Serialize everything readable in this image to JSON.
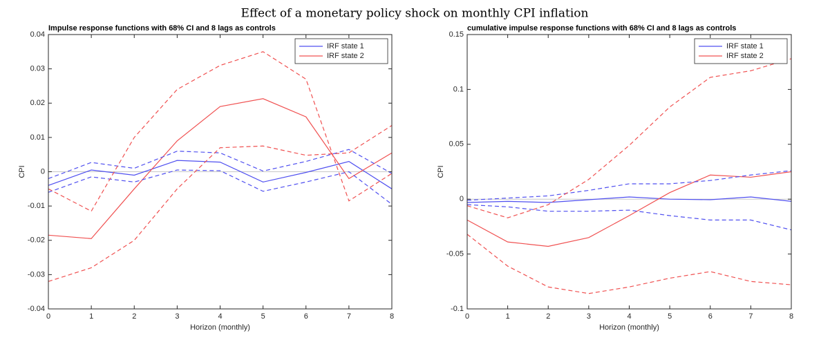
{
  "title": "Effect of a monetary policy shock on monthly CPI inflation",
  "chart_data": [
    {
      "type": "line",
      "title": "Impulse response functions with 68% CI and 8 lags as controls",
      "x_label": "Horizon (monthly)",
      "y_label": "CPI",
      "x": [
        0,
        1,
        2,
        3,
        4,
        5,
        6,
        7,
        8
      ],
      "xlim": [
        0,
        8
      ],
      "xticks": [
        0,
        1,
        2,
        3,
        4,
        5,
        6,
        7,
        8
      ],
      "ylim": [
        -0.04,
        0.04
      ],
      "yticks": [
        -0.04,
        -0.03,
        -0.02,
        -0.01,
        0,
        0.01,
        0.02,
        0.03,
        0.04
      ],
      "legend": "upper right",
      "series": [
        {
          "name": "IRF state 1",
          "color": "#4f4ff0",
          "values": [
            -0.004,
            0.0005,
            -0.001,
            0.0033,
            0.0028,
            -0.003,
            -0.0002,
            0.003,
            -0.005
          ]
        },
        {
          "name": "IRF state 2",
          "color": "#f05050",
          "values": [
            -0.0185,
            -0.0195,
            -0.005,
            0.009,
            0.019,
            0.0213,
            0.016,
            -0.002,
            0.0055
          ]
        },
        {
          "color": "#4f4ff0",
          "dashed": true,
          "values": [
            -0.002,
            0.0027,
            0.001,
            0.006,
            0.0055,
            0.0002,
            0.003,
            0.0065,
            -0.0005
          ]
        },
        {
          "color": "#4f4ff0",
          "dashed": true,
          "values": [
            -0.006,
            -0.0015,
            -0.003,
            0.0005,
            0.0003,
            -0.0057,
            -0.003,
            0,
            -0.0095
          ]
        },
        {
          "color": "#f05050",
          "dashed": true,
          "values": [
            -0.005,
            -0.0115,
            0.01,
            0.024,
            0.031,
            0.035,
            0.027,
            -0.0085,
            -0.0005
          ]
        },
        {
          "color": "#f05050",
          "dashed": true,
          "values": [
            -0.032,
            -0.028,
            -0.02,
            -0.005,
            0.007,
            0.0075,
            0.0048,
            0.0055,
            0.0135
          ]
        }
      ]
    },
    {
      "type": "line",
      "title": "cumulative impulse response functions with 68% CI and 8 lags as controls",
      "x_label": "Horizon (monthly)",
      "y_label": "CPI",
      "x": [
        0,
        1,
        2,
        3,
        4,
        5,
        6,
        7,
        8
      ],
      "xlim": [
        0,
        8
      ],
      "xticks": [
        0,
        1,
        2,
        3,
        4,
        5,
        6,
        7,
        8
      ],
      "ylim": [
        -0.1,
        0.15
      ],
      "yticks": [
        -0.1,
        -0.05,
        0,
        0.05,
        0.1,
        0.15
      ],
      "legend": "upper right",
      "series": [
        {
          "name": "IRF state 1",
          "color": "#4f4ff0",
          "values": [
            -0.003,
            -0.002,
            -0.003,
            -0.0005,
            0.002,
            0,
            -0.0005,
            0.002,
            -0.002
          ]
        },
        {
          "name": "IRF state 2",
          "color": "#f05050",
          "values": [
            -0.019,
            -0.039,
            -0.043,
            -0.035,
            -0.015,
            0.006,
            0.022,
            0.02,
            0.025
          ]
        },
        {
          "color": "#4f4ff0",
          "dashed": true,
          "values": [
            -0.001,
            0.001,
            0.003,
            0.008,
            0.014,
            0.014,
            0.017,
            0.022,
            0.026
          ]
        },
        {
          "color": "#4f4ff0",
          "dashed": true,
          "values": [
            -0.005,
            -0.007,
            -0.011,
            -0.011,
            -0.01,
            -0.015,
            -0.019,
            -0.019,
            -0.028
          ]
        },
        {
          "color": "#f05050",
          "dashed": true,
          "values": [
            -0.006,
            -0.017,
            -0.005,
            0.018,
            0.049,
            0.084,
            0.111,
            0.117,
            0.128
          ]
        },
        {
          "color": "#f05050",
          "dashed": true,
          "values": [
            -0.032,
            -0.061,
            -0.08,
            -0.086,
            -0.08,
            -0.072,
            -0.066,
            -0.075,
            -0.078
          ]
        }
      ]
    }
  ]
}
